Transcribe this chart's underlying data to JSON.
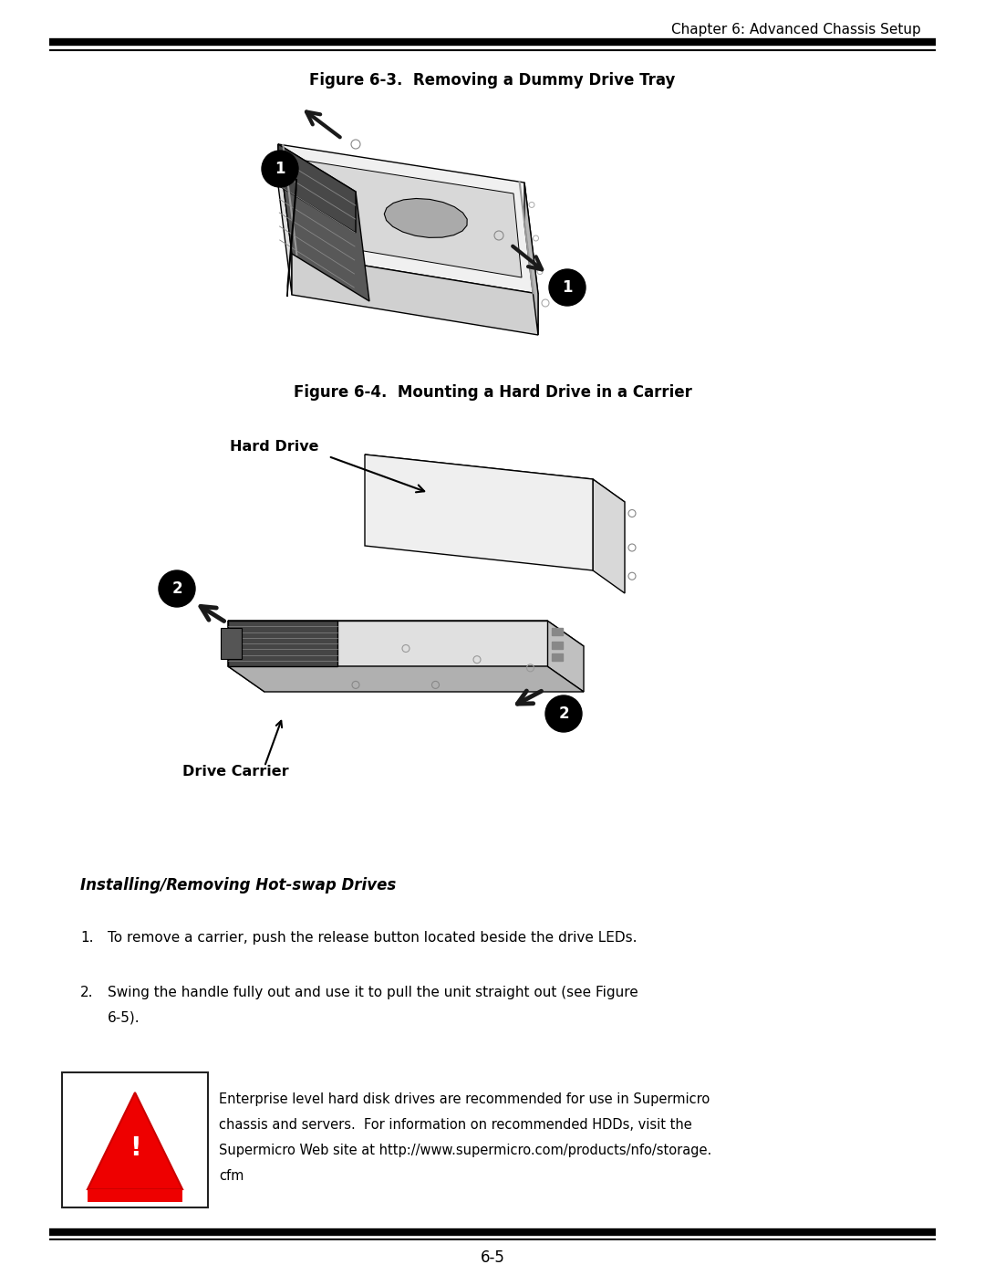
{
  "page_header_text": "Chapter 6: Advanced Chassis Setup",
  "figure1_title": "Figure 6-3.  Removing a Dummy Drive Tray",
  "figure2_title": "Figure 6-4.  Mounting a Hard Drive in a Carrier",
  "section_title": "Installing/Removing Hot-swap Drives",
  "step1": "To remove a carrier, push the release button located beside the drive LEDs.",
  "step2_line1": "Swing the handle fully out and use it to pull the unit straight out (see Figure",
  "step2_line2": "6-5).",
  "warn_line1": "Enterprise level hard disk drives are recommended for use in Supermicro",
  "warn_line2": "chassis and servers.  For information on recommended HDDs, visit the",
  "warn_line3": "Supermicro Web site at http://www.supermicro.com/products/nfo/storage.",
  "warn_line4": "cfm",
  "page_number": "6-5",
  "background_color": "#ffffff",
  "text_color": "#000000"
}
